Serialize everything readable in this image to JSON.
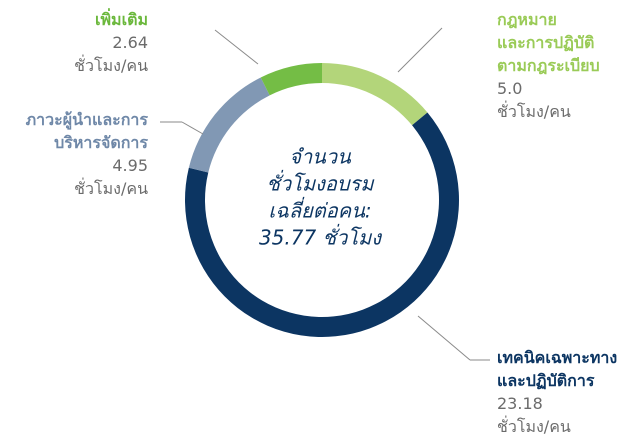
{
  "chart_data": {
    "type": "pie",
    "donut": true,
    "categories": [
      "กฎหมาย\nและการปฏิบัติ\nตามกฎระเบียบ",
      "เทคนิคเฉพาะทาง\nและปฏิบัติการ",
      "ภาวะผู้นำและการ\nบริหารจัดการ",
      "เพิ่มเติม"
    ],
    "values": [
      5.0,
      23.18,
      4.95,
      2.64
    ],
    "value_labels": [
      "5.0",
      "23.18",
      "4.95",
      "2.64"
    ],
    "colors": [
      "#b3d57a",
      "#0c3562",
      "#8198b4",
      "#74bd45"
    ],
    "label_colors": [
      "#9acb57",
      "#0c3562",
      "#6f88a8",
      "#6bb83c"
    ],
    "unit_label": "ชั่วโมง/คน",
    "center_text": [
      "จำนวน",
      "ชั่วโมงอบรม",
      "เฉลี่ยต่อคน:",
      "35.77 ชั่วโมง"
    ]
  }
}
